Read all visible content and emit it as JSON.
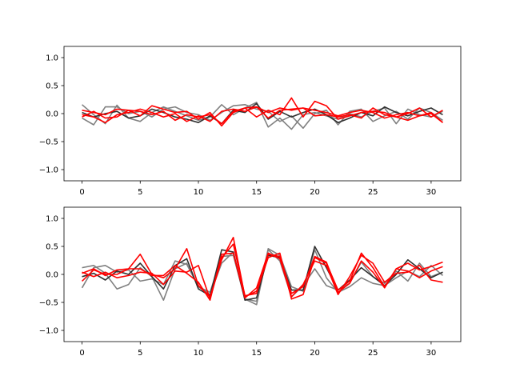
{
  "chart_data": [
    {
      "type": "line",
      "title": "",
      "xlabel": "",
      "ylabel": "",
      "xlim": [
        -1.55,
        32.55
      ],
      "ylim": [
        -1.2,
        1.2
      ],
      "x_ticks": [
        0,
        5,
        10,
        15,
        20,
        25,
        30
      ],
      "y_ticks": [
        -1.0,
        -0.5,
        0.0,
        0.5,
        1.0
      ],
      "x_tick_labels": [
        "0",
        "5",
        "10",
        "15",
        "20",
        "25",
        "30"
      ],
      "y_tick_labels": [
        "−1.0",
        "−0.5",
        "0.0",
        "0.5",
        "1.0"
      ],
      "grid": false,
      "x": [
        0,
        1,
        2,
        3,
        4,
        5,
        6,
        7,
        8,
        9,
        10,
        11,
        12,
        13,
        14,
        15,
        16,
        17,
        18,
        19,
        20,
        21,
        22,
        23,
        24,
        25,
        26,
        27,
        28,
        29,
        30,
        31
      ],
      "series": [
        {
          "color": "#808080",
          "values": [
            0.16,
            -0.02,
            -0.18,
            0.15,
            -0.08,
            -0.14,
            0.02,
            0.12,
            0.04,
            -0.04,
            -0.12,
            -0.06,
            0.16,
            -0.02,
            0.1,
            0.2,
            -0.24,
            -0.08,
            -0.28,
            -0.02,
            0.02,
            -0.04,
            -0.1,
            0.0,
            -0.06,
            0.04,
            0.1,
            -0.18,
            0.08,
            -0.02,
            -0.06,
            0.04
          ]
        },
        {
          "color": "#808080",
          "values": [
            -0.08,
            -0.2,
            0.12,
            0.12,
            0.0,
            0.04,
            -0.06,
            0.08,
            0.12,
            0.02,
            -0.02,
            -0.12,
            0.02,
            0.14,
            0.16,
            0.08,
            0.04,
            -0.14,
            -0.04,
            -0.26,
            0.0,
            0.06,
            -0.2,
            0.04,
            0.08,
            -0.14,
            -0.04,
            0.04,
            -0.1,
            0.1,
            0.02,
            -0.12
          ]
        },
        {
          "color": "#303030",
          "values": [
            0.02,
            -0.06,
            0.0,
            0.04,
            -0.08,
            -0.04,
            0.08,
            0.02,
            -0.06,
            -0.1,
            -0.16,
            -0.04,
            -0.18,
            0.06,
            0.02,
            0.18,
            -0.1,
            0.04,
            -0.06,
            0.02,
            0.08,
            -0.02,
            -0.16,
            -0.08,
            0.02,
            -0.04,
            0.12,
            0.02,
            -0.04,
            0.04,
            0.1,
            -0.02
          ]
        },
        {
          "color": "#ff0000",
          "values": [
            0.06,
            0.02,
            -0.02,
            0.08,
            0.06,
            -0.04,
            0.14,
            0.08,
            0.02,
            0.04,
            -0.1,
            0.02,
            -0.22,
            0.02,
            0.1,
            0.12,
            0.02,
            0.1,
            0.06,
            0.1,
            0.06,
            0.02,
            -0.04,
            0.02,
            0.06,
            0.02,
            -0.08,
            -0.02,
            0.02,
            -0.04,
            0.0,
            -0.16
          ]
        },
        {
          "color": "#ff0000",
          "values": [
            -0.06,
            0.04,
            -0.08,
            -0.06,
            0.06,
            0.04,
            -0.02,
            0.04,
            -0.12,
            -0.02,
            -0.06,
            -0.02,
            -0.18,
            0.04,
            0.1,
            -0.06,
            0.06,
            -0.02,
            0.28,
            -0.06,
            0.22,
            0.14,
            -0.1,
            -0.04,
            0.02,
            0.04,
            0.02,
            -0.06,
            -0.12,
            -0.04,
            0.02,
            -0.16
          ]
        },
        {
          "color": "#ff0000",
          "values": [
            -0.02,
            -0.06,
            -0.16,
            -0.02,
            0.02,
            0.08,
            0.02,
            -0.06,
            0.0,
            -0.14,
            -0.04,
            -0.14,
            0.04,
            0.08,
            0.04,
            0.12,
            -0.08,
            0.06,
            0.08,
            0.1,
            -0.04,
            -0.02,
            -0.06,
            -0.02,
            -0.08,
            0.1,
            -0.02,
            -0.06,
            0.0,
            0.1,
            -0.06,
            0.06
          ]
        }
      ]
    },
    {
      "type": "line",
      "title": "",
      "xlabel": "",
      "ylabel": "",
      "xlim": [
        -1.55,
        32.55
      ],
      "ylim": [
        -1.2,
        1.2
      ],
      "x_ticks": [
        0,
        5,
        10,
        15,
        20,
        25,
        30
      ],
      "y_ticks": [
        -1.0,
        -0.5,
        0.0,
        0.5,
        1.0
      ],
      "x_tick_labels": [
        "0",
        "5",
        "10",
        "15",
        "20",
        "25",
        "30"
      ],
      "y_tick_labels": [
        "−1.0",
        "−0.5",
        "0.0",
        "0.5",
        "1.0"
      ],
      "grid": false,
      "x": [
        0,
        1,
        2,
        3,
        4,
        5,
        6,
        7,
        8,
        9,
        10,
        11,
        12,
        13,
        14,
        15,
        16,
        17,
        18,
        19,
        20,
        21,
        22,
        23,
        24,
        25,
        26,
        27,
        28,
        29,
        30,
        31
      ],
      "series": [
        {
          "color": "#808080",
          "values": [
            0.12,
            0.16,
            0.02,
            -0.26,
            -0.18,
            0.12,
            -0.04,
            -0.46,
            0.1,
            0.2,
            -0.22,
            -0.36,
            0.2,
            0.4,
            -0.44,
            -0.54,
            0.44,
            0.24,
            -0.4,
            -0.2,
            0.1,
            -0.2,
            -0.28,
            -0.16,
            0.22,
            -0.04,
            -0.16,
            0.06,
            -0.12,
            0.2,
            -0.04,
            0.04
          ]
        },
        {
          "color": "#808080",
          "values": [
            -0.24,
            0.12,
            0.16,
            0.04,
            0.08,
            -0.12,
            -0.08,
            -0.18,
            0.24,
            0.18,
            -0.22,
            -0.32,
            0.32,
            0.34,
            -0.44,
            -0.48,
            0.46,
            0.34,
            -0.22,
            -0.3,
            0.44,
            -0.06,
            -0.32,
            -0.22,
            -0.06,
            -0.16,
            -0.2,
            -0.06,
            0.06,
            -0.04,
            0.16,
            -0.02
          ]
        },
        {
          "color": "#303030",
          "values": [
            -0.04,
            0.02,
            -0.1,
            0.06,
            0.0,
            0.2,
            -0.04,
            -0.26,
            0.16,
            0.28,
            -0.26,
            -0.38,
            0.44,
            0.4,
            -0.46,
            -0.42,
            0.34,
            0.3,
            -0.28,
            -0.28,
            0.5,
            0.12,
            -0.28,
            -0.1,
            0.12,
            -0.04,
            -0.2,
            0.0,
            0.26,
            0.1,
            -0.06,
            0.04
          ]
        },
        {
          "color": "#ff0000",
          "values": [
            0.02,
            0.1,
            -0.02,
            0.08,
            0.1,
            0.36,
            0.0,
            -0.06,
            0.1,
            0.46,
            -0.2,
            -0.4,
            0.26,
            0.66,
            -0.4,
            -0.3,
            0.3,
            0.38,
            -0.44,
            -0.36,
            0.3,
            0.2,
            -0.28,
            -0.12,
            0.38,
            0.12,
            -0.22,
            0.1,
            0.06,
            -0.06,
            0.06,
            0.14
          ]
        },
        {
          "color": "#ff0000",
          "values": [
            -0.12,
            0.08,
            0.0,
            0.0,
            0.1,
            0.1,
            -0.02,
            -0.02,
            0.16,
            0.02,
            -0.14,
            -0.46,
            0.36,
            0.38,
            -0.42,
            -0.24,
            0.38,
            0.28,
            -0.4,
            -0.18,
            0.24,
            0.16,
            -0.36,
            -0.04,
            0.34,
            0.2,
            -0.14,
            0.02,
            0.04,
            0.16,
            -0.1,
            -0.14
          ]
        },
        {
          "color": "#ff0000",
          "values": [
            0.04,
            -0.04,
            0.04,
            -0.06,
            -0.02,
            0.04,
            0.02,
            -0.18,
            0.06,
            0.04,
            0.16,
            -0.44,
            0.3,
            0.54,
            -0.38,
            -0.34,
            0.36,
            0.32,
            -0.34,
            -0.22,
            0.32,
            0.22,
            -0.32,
            -0.16,
            0.24,
            0.04,
            -0.24,
            0.1,
            0.2,
            0.08,
            0.14,
            0.22
          ]
        }
      ]
    }
  ]
}
